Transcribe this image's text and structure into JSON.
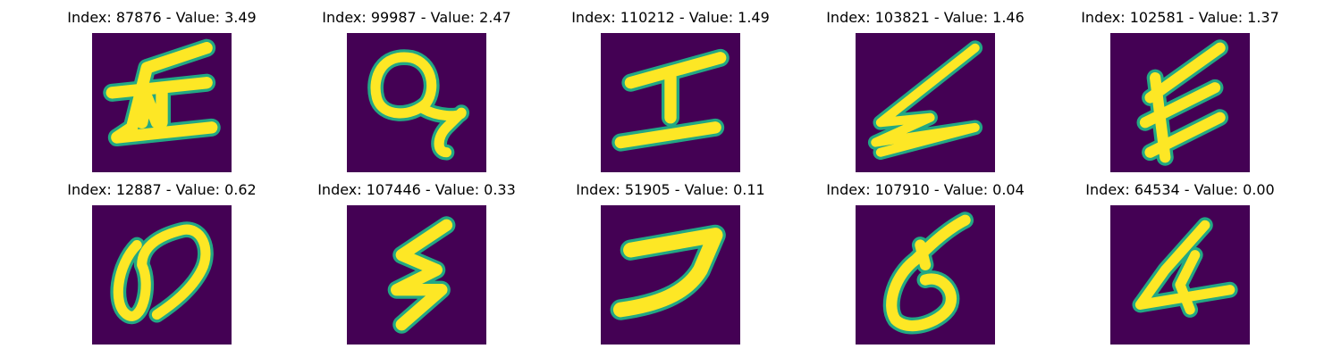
{
  "colors": {
    "background": "#440154",
    "stroke_outer": "#22a884",
    "stroke_inner": "#fde725"
  },
  "grid": {
    "rows": 2,
    "columns": 5
  },
  "images": [
    {
      "title": "Index: 87876 - Value: 3.49",
      "index": 87876,
      "value": 3.49,
      "shape": "glyph-87876"
    },
    {
      "title": "Index: 99987 - Value: 2.47",
      "index": 99987,
      "value": 2.47,
      "shape": "glyph-99987"
    },
    {
      "title": "Index: 110212 - Value: 1.49",
      "index": 110212,
      "value": 1.49,
      "shape": "glyph-110212"
    },
    {
      "title": "Index: 103821 - Value: 1.46",
      "index": 103821,
      "value": 1.46,
      "shape": "glyph-103821"
    },
    {
      "title": "Index: 102581 - Value: 1.37",
      "index": 102581,
      "value": 1.37,
      "shape": "glyph-102581"
    },
    {
      "title": "Index: 12887 - Value: 0.62",
      "index": 12887,
      "value": 0.62,
      "shape": "glyph-12887"
    },
    {
      "title": "Index: 107446 - Value: 0.33",
      "index": 107446,
      "value": 0.33,
      "shape": "glyph-107446"
    },
    {
      "title": "Index: 51905 - Value: 0.11",
      "index": 51905,
      "value": 0.11,
      "shape": "glyph-51905"
    },
    {
      "title": "Index: 107910 - Value: 0.04",
      "index": 107910,
      "value": 0.04,
      "shape": "glyph-107910"
    },
    {
      "title": "Index: 64534 - Value: 0.00",
      "index": 64534,
      "value": 0.0,
      "shape": "glyph-64534"
    }
  ]
}
